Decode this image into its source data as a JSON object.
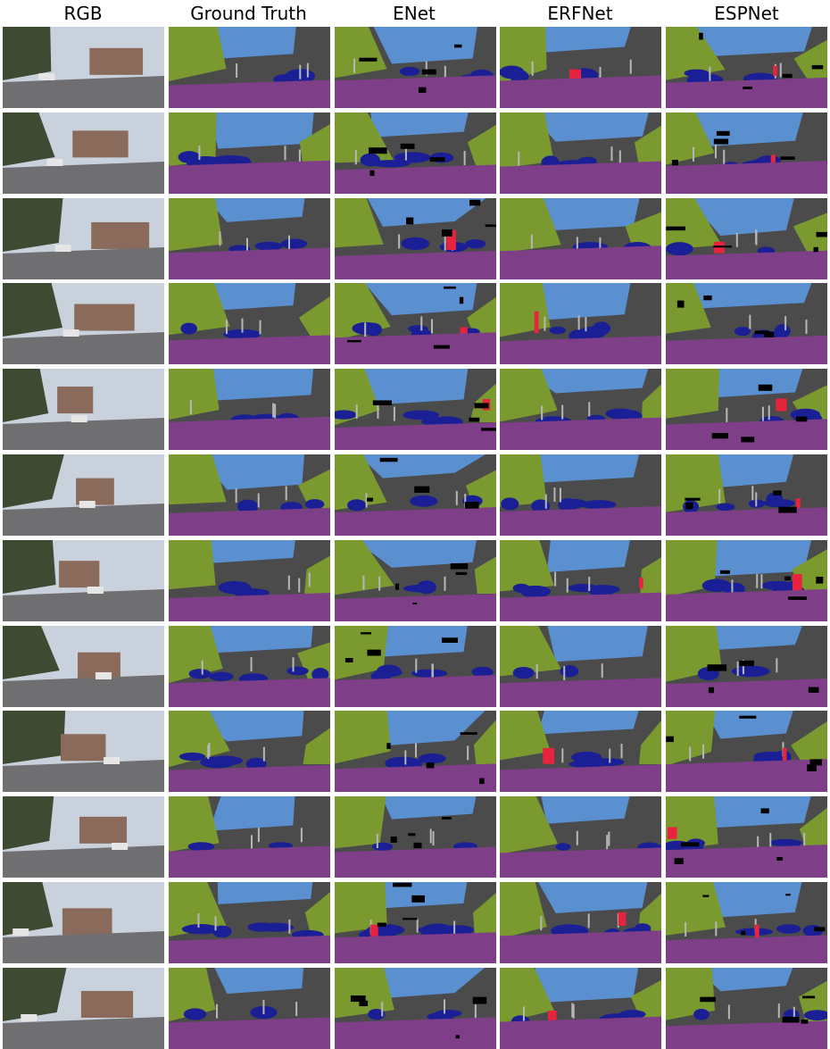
{
  "columns": [
    "RGB",
    "Ground Truth",
    "ENet",
    "ERFNet",
    "ESPNet"
  ],
  "rows": 12,
  "palette": {
    "road": "#7e3f88",
    "sky": "#5a8fd0",
    "vegetation": "#7a9a2f",
    "building": "#4b4b4b",
    "car": "#1a1f95",
    "person": "#e8233e",
    "pole": "#b7b7b7",
    "unlabeled": "#000000"
  }
}
